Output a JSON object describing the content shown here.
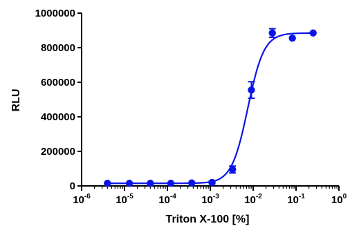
{
  "chart_data": {
    "type": "scatter",
    "title": "",
    "xlabel": "Triton X-100 [%]",
    "ylabel": "RLU",
    "x_scale": "log10",
    "xlim": [
      1e-06,
      1
    ],
    "ylim": [
      0,
      1000000
    ],
    "x_ticks": [
      {
        "base": "10",
        "exp": "-6"
      },
      {
        "base": "10",
        "exp": "-5"
      },
      {
        "base": "10",
        "exp": "-4"
      },
      {
        "base": "10",
        "exp": "-3"
      },
      {
        "base": "10",
        "exp": "-2"
      },
      {
        "base": "10",
        "exp": "-1"
      },
      {
        "base": "10",
        "exp": "0"
      }
    ],
    "y_ticks": [
      "0",
      "200000",
      "400000",
      "600000",
      "800000",
      "1000000"
    ],
    "color": "#0a14e6",
    "grid": false,
    "series": [
      {
        "x": [
          4e-06,
          1.3e-05,
          4e-05,
          0.00012,
          0.00037,
          0.0011,
          0.0033,
          0.0091,
          0.028,
          0.082,
          0.25
        ],
        "y": [
          15000,
          15000,
          15000,
          15000,
          17000,
          20000,
          95000,
          555000,
          885000,
          855000,
          885000
        ],
        "err": [
          0,
          0,
          0,
          0,
          0,
          8000,
          20000,
          48000,
          25000,
          0,
          0
        ]
      }
    ],
    "fit": {
      "model": "sigmoidal dose-response",
      "bottom": 15000,
      "top": 885000,
      "ec50": 0.0075,
      "hill": 2.3
    }
  }
}
